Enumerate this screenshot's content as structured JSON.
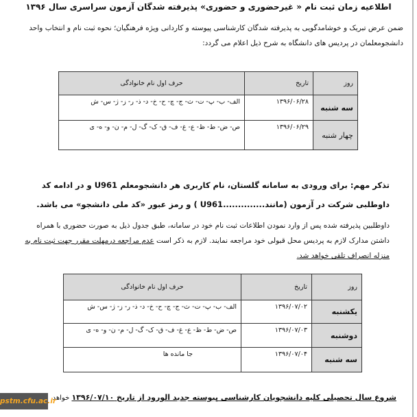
{
  "title": "اطلاعیه زمان ثبت نام « غیرحضوری و حضوری» پذیرفته شدگان آزمون سراسری سال ۱۳۹۶",
  "intro": "ضمن عرض تبریک و خوشامدگویی به پذیرفته شدگان کارشناسی پیوسته و کاردانی ویژه فرهنگیان؛ نحوه ثبت نام و انتخاب واحد دانشجومعلمان در پردیس های دانشگاه به شرح ذیل اعلام می گردد:",
  "table1": {
    "headers": {
      "day": "روز",
      "date": "تاریخ",
      "letters": "حرف اول نام خانوادگی"
    },
    "rows": [
      {
        "day": "سه شنبه",
        "date": "۱۳۹۶/۰۶/۲۸",
        "letters": "الف- ب- پ- ت- ث- ج- چ- ح- خ- د- ذ- ر- ز- ژ- س- ش"
      },
      {
        "day": "چهار شنبه",
        "date": "۱۳۹۶/۰۶/۲۹",
        "letters": "ص- ض- ط- ظ- ع- غ- ف- ق- ک- گ- ل- م- ن- و- ه- ی"
      }
    ]
  },
  "note": "تذکر مهم: برای ورودی به سامانه گلستان، نام کاربری هر دانشجومعلم U961 و در ادامه کد داوطلبی شرکت در آزمون (مانند..............U961 ) و رمز عبور «کد ملی دانشجو» می باشد.",
  "para2_a": "داوطلبین پذیرفته شده پس از وارد نمودن اطلاعات ثبت نام خود در سامانه، طبق جدول ذیل به صورت حضوری با همراه داشتن مدارک لازم به پردیس محل قبولی خود مراجعه نمایند. لازم به ذکر است ",
  "para2_u": "عدم مراجعه درمهلت مقرر جهت ثبت نام به منزله انصراف تلقی خواهد شد.",
  "table2": {
    "headers": {
      "day": "روز",
      "date": "تاریخ",
      "letters": "حرف اول نام خانوادگی"
    },
    "rows": [
      {
        "day": "یکشنبه",
        "date": "۱۳۹۶/۰۷/۰۲",
        "letters": "الف- ب- پ- ت- ث- ج- چ- ح- خ- د- ذ- ر- ز- ژ- س- ش"
      },
      {
        "day": "دوشنبه",
        "date": "۱۳۹۶/۰۷/۰۳",
        "letters": "ص- ض- ط- ظ- ع- غ- ف- ق- ک- گ- ل- م- ن- و- ه- ی"
      },
      {
        "day": "سه شنبه",
        "date": "۱۳۹۶/۰۷/۰۴",
        "letters": "جا مانده ها"
      }
    ]
  },
  "footer_u": "شروع سال تحصیلی کلیه دانشجویان کارشناسی پیوسته جدید الورود از تاریخ ۱۳۹۶/۰۷/۱۰",
  "footer_rest": " خواهد",
  "watermark": "pstm.cfu.ac.ir"
}
